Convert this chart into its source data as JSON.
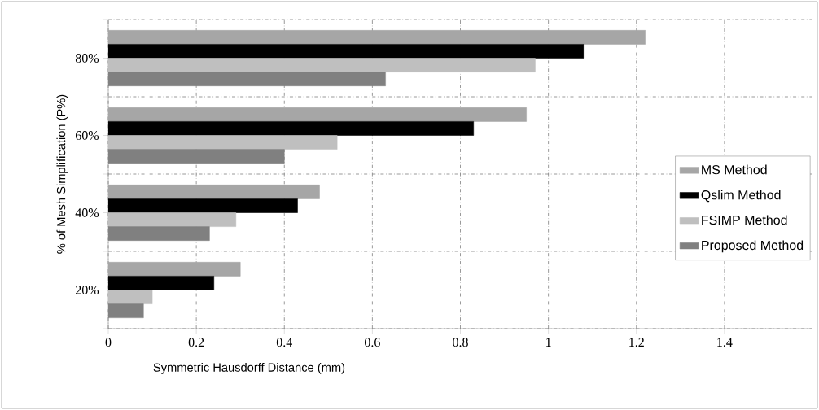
{
  "chart_data": {
    "type": "bar",
    "orientation": "horizontal",
    "xlabel": "Symmetric Hausdorff  Distance (mm)",
    "ylabel": "% of Mesh Simplification (P%)",
    "categories": [
      "80%",
      "60%",
      "40%",
      "20%"
    ],
    "series": [
      {
        "name": "MS Method",
        "color": "#a6a6a6",
        "values": [
          1.22,
          0.95,
          0.48,
          0.3
        ]
      },
      {
        "name": "Qslim Method",
        "color": "#000000",
        "values": [
          1.08,
          0.83,
          0.43,
          0.24
        ]
      },
      {
        "name": "FSIMP Method",
        "color": "#bfbfbf",
        "values": [
          0.97,
          0.52,
          0.29,
          0.1
        ]
      },
      {
        "name": "Proposed Method",
        "color": "#808080",
        "values": [
          0.63,
          0.4,
          0.23,
          0.08
        ]
      }
    ],
    "xlim": [
      0,
      1.6
    ],
    "xticks": [
      0,
      0.2,
      0.4,
      0.6,
      0.8,
      1,
      1.2,
      1.4
    ],
    "grid": true,
    "legend": "right"
  }
}
